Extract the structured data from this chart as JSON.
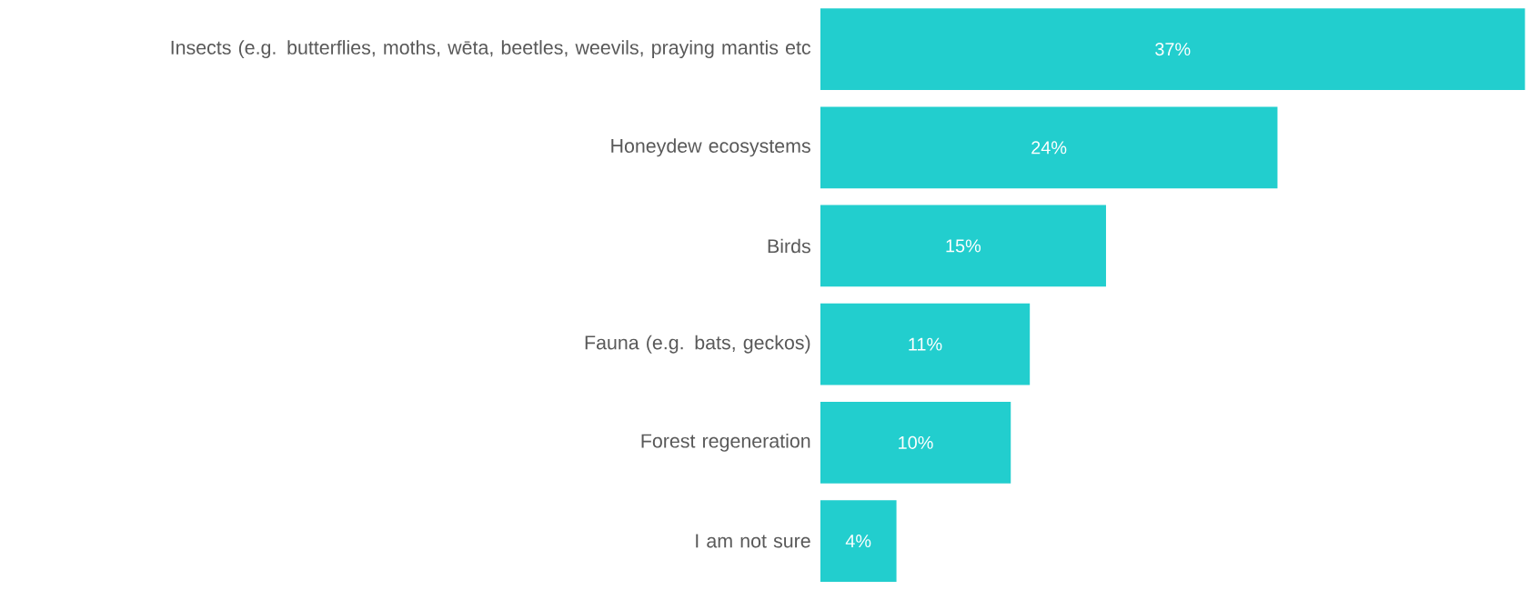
{
  "chart_data": {
    "type": "bar",
    "orientation": "horizontal",
    "categories": [
      "Insects (e.g. butterflies, moths, wēta, beetles, weevils, praying mantis etc",
      "Honeydew ecosystems",
      "Birds",
      "Fauna (e.g. bats, geckos)",
      "Forest regeneration",
      "I am not sure"
    ],
    "values": [
      37,
      24,
      15,
      11,
      10,
      4
    ],
    "value_labels": [
      "37%",
      "24%",
      "15%",
      "11%",
      "10%",
      "4%"
    ],
    "color": "#22cece"
  }
}
